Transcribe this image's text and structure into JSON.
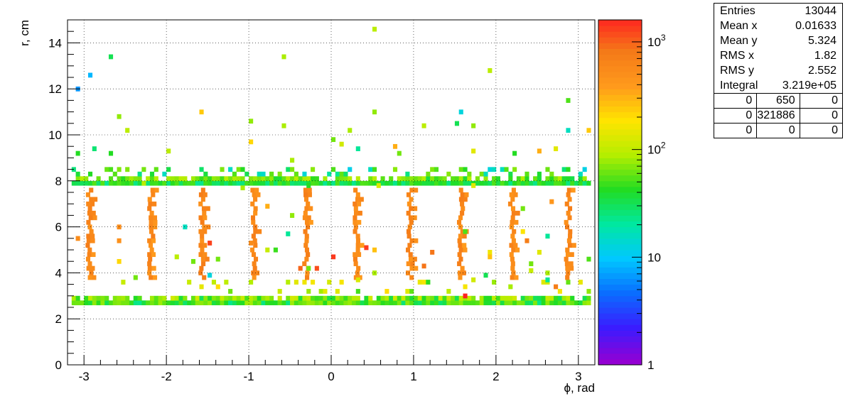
{
  "chart_data": {
    "type": "heatmap",
    "title": "",
    "xlabel": "ϕ, rad",
    "ylabel": "r, cm",
    "xlim": [
      -3.2,
      3.2
    ],
    "ylim": [
      0,
      15
    ],
    "x_ticks": [
      "-3",
      "-2",
      "-1",
      "0",
      "1",
      "2",
      "3"
    ],
    "y_ticks": [
      "0",
      "2",
      "4",
      "6",
      "8",
      "10",
      "12",
      "14"
    ],
    "grid": true,
    "z_scale": "log",
    "zlim": [
      1,
      1600
    ],
    "z_ticks": [
      "1",
      "10",
      "10^2",
      "10^3"
    ],
    "colormap": [
      "#9400d3",
      "#3a1cff",
      "#0a6dff",
      "#00c8ff",
      "#00e8a0",
      "#22dc22",
      "#b4ee00",
      "#ffe400",
      "#ff9a1c",
      "#f47a18",
      "#ff2020"
    ],
    "features": {
      "inner_ring_r": [
        2.6,
        2.9
      ],
      "outer_ring_r": [
        7.8,
        8.6
      ],
      "rib_phi": [
        -2.96,
        -2.21,
        -1.59,
        -0.96,
        -0.33,
        0.28,
        0.93,
        1.55,
        2.17,
        2.85
      ],
      "rib_r": [
        3.7,
        7.7
      ],
      "rib_count_level": 600,
      "inner_ring_count_level": 70,
      "outer_ring_count_level": 40
    },
    "scatter_points": [
      [
        0.5,
        14.5,
        90
      ],
      [
        -2.7,
        13.3,
        30
      ],
      [
        -0.6,
        13.3,
        80
      ],
      [
        -2.95,
        12.5,
        8
      ],
      [
        1.9,
        12.7,
        90
      ],
      [
        -3.1,
        11.9,
        6
      ],
      [
        -1.6,
        10.9,
        230
      ],
      [
        1.55,
        10.9,
        12
      ],
      [
        2.85,
        11.4,
        50
      ],
      [
        -2.6,
        10.7,
        70
      ],
      [
        -1.0,
        10.5,
        70
      ],
      [
        0.5,
        10.9,
        70
      ],
      [
        -2.5,
        10.1,
        90
      ],
      [
        -0.6,
        10.3,
        80
      ],
      [
        0.2,
        10.1,
        80
      ],
      [
        1.1,
        10.3,
        90
      ],
      [
        1.5,
        10.4,
        30
      ],
      [
        1.7,
        10.3,
        70
      ],
      [
        3.1,
        10.1,
        230
      ],
      [
        2.85,
        10.1,
        15
      ],
      [
        0.0,
        9.7,
        60
      ],
      [
        -1.0,
        9.6,
        200
      ],
      [
        0.1,
        9.5,
        110
      ],
      [
        0.3,
        9.3,
        20
      ],
      [
        -2.9,
        9.3,
        25
      ],
      [
        -2.7,
        9.1,
        40
      ],
      [
        -2.0,
        9.2,
        90
      ],
      [
        0.8,
        9.1,
        60
      ],
      [
        1.7,
        9.2,
        130
      ],
      [
        2.2,
        9.1,
        40
      ],
      [
        2.5,
        9.2,
        300
      ],
      [
        2.7,
        9.3,
        130
      ],
      [
        0.75,
        9.4,
        300
      ],
      [
        -3.1,
        9.1,
        40
      ],
      [
        -0.5,
        8.8,
        80
      ],
      [
        -2.3,
        7.8,
        90
      ],
      [
        -1.1,
        7.6,
        80
      ],
      [
        -0.3,
        7.7,
        40
      ],
      [
        0.55,
        7.7,
        120
      ],
      [
        1.7,
        7.7,
        130
      ],
      [
        2.65,
        7.0,
        400
      ],
      [
        -0.8,
        6.8,
        300
      ],
      [
        -0.5,
        6.4,
        70
      ],
      [
        2.3,
        6.7,
        60
      ],
      [
        -2.6,
        5.9,
        500
      ],
      [
        -1.8,
        5.9,
        15
      ],
      [
        -0.55,
        5.6,
        20
      ],
      [
        1.6,
        5.7,
        50
      ],
      [
        2.3,
        5.7,
        170
      ],
      [
        2.35,
        5.3,
        700
      ],
      [
        2.6,
        5.5,
        20
      ],
      [
        -3.1,
        5.4,
        500
      ],
      [
        -2.6,
        5.3,
        450
      ],
      [
        -1.5,
        5.2,
        1200
      ],
      [
        -1.0,
        5.2,
        500
      ],
      [
        0.4,
        5.0,
        1300
      ],
      [
        0.5,
        4.9,
        250
      ],
      [
        -0.8,
        4.9,
        100
      ],
      [
        -0.7,
        4.9,
        45
      ],
      [
        1.2,
        4.8,
        800
      ],
      [
        1.9,
        4.8,
        150
      ],
      [
        1.9,
        4.6,
        250
      ],
      [
        2.5,
        4.8,
        130
      ],
      [
        -2.6,
        4.4,
        200
      ],
      [
        -1.9,
        4.6,
        90
      ],
      [
        -1.7,
        4.4,
        60
      ],
      [
        -1.4,
        4.5,
        60
      ],
      [
        0.0,
        4.6,
        1300
      ],
      [
        1.1,
        4.2,
        800
      ],
      [
        2.4,
        4.3,
        60
      ],
      [
        3.1,
        4.5,
        50
      ],
      [
        -0.2,
        4.1,
        1100
      ],
      [
        -0.4,
        4.1,
        900
      ],
      [
        -0.3,
        4.1,
        60
      ],
      [
        0.5,
        3.9,
        80
      ],
      [
        1.85,
        3.8,
        30
      ],
      [
        2.4,
        4.0,
        100
      ],
      [
        2.6,
        3.9,
        80
      ],
      [
        0.3,
        3.6,
        120
      ],
      [
        1.7,
        3.6,
        110
      ],
      [
        1.6,
        2.9,
        1600
      ],
      [
        -2.4,
        3.7,
        60
      ],
      [
        -1.5,
        3.8,
        12
      ],
      [
        2.7,
        3.3,
        700
      ],
      [
        2.6,
        3.6,
        20
      ]
    ]
  },
  "stats_box": {
    "entries_label": "Entries",
    "entries_value": "13044",
    "meanx_label": "Mean x",
    "meanx_value": "0.01633",
    "meany_label": "Mean y",
    "meany_value": "5.324",
    "rmsx_label": "RMS x",
    "rmsx_value": "1.82",
    "rmsy_label": "RMS y",
    "rmsy_value": "2.552",
    "integral_label": "Integral",
    "integral_value": "3.219e+05",
    "table": [
      [
        "0",
        "650",
        "0"
      ],
      [
        "0",
        "321886",
        "0"
      ],
      [
        "0",
        "0",
        "0"
      ]
    ]
  }
}
